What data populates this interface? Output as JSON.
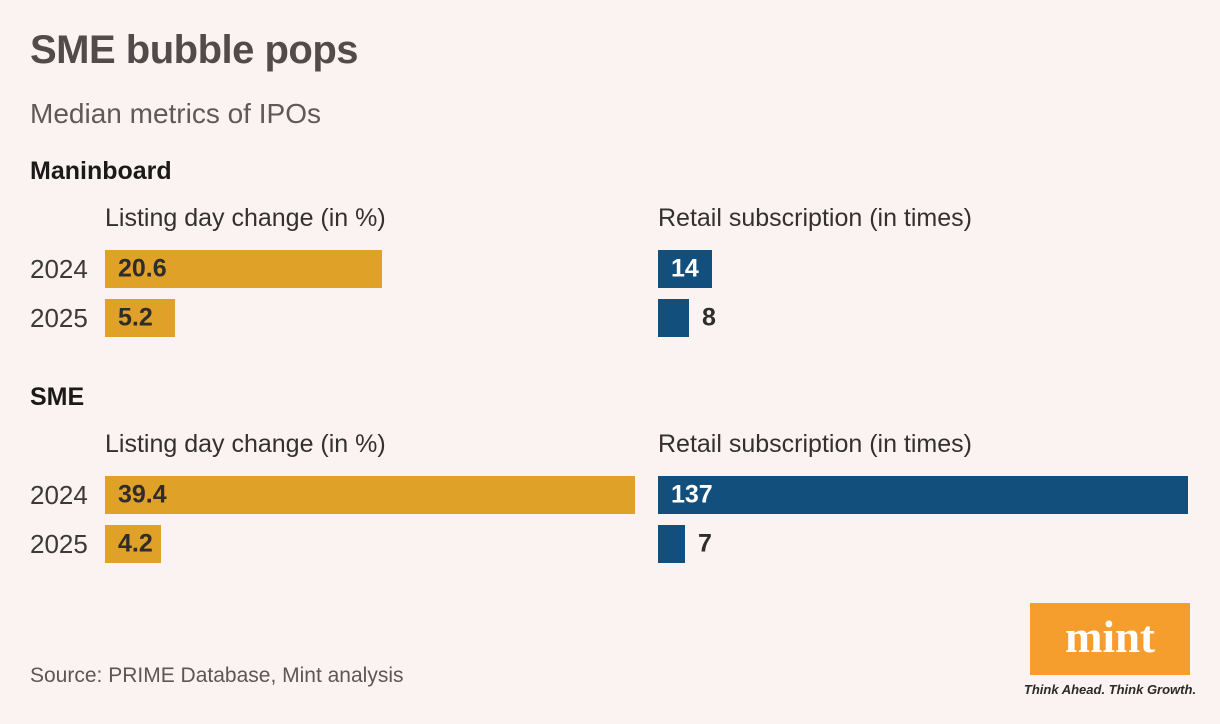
{
  "page": {
    "title": "SME bubble pops",
    "subtitle": "Median metrics of IPOs",
    "source": "Source: PRIME Database, Mint analysis"
  },
  "sections": [
    {
      "label": "Maninboard"
    },
    {
      "label": "SME"
    }
  ],
  "colors": {
    "background": "#fbf3f2",
    "gold_bar": "#dfa127",
    "blue_bar": "#124f7c",
    "title_gray": "#514b4b",
    "text_dark": "#2e2c2c",
    "logo_orange": "#f69e2d"
  },
  "logo": {
    "text": "mint",
    "tagline": "Think Ahead. Think Growth."
  },
  "chart_data": [
    {
      "type": "bar",
      "section": "Maninboard",
      "title": "Listing day change (in %)",
      "orientation": "horizontal",
      "categories": [
        "2024",
        "2025"
      ],
      "values": [
        20.6,
        5.2
      ],
      "xlim": [
        0,
        39.4
      ],
      "color": "#dfa127",
      "inside_label_color": "#2e2c2c",
      "label_position": [
        "inside",
        "inside"
      ],
      "grid": false,
      "legend": false
    },
    {
      "type": "bar",
      "section": "Maninboard",
      "title": "Retail subscription (in times)",
      "orientation": "horizontal",
      "categories": [
        "2024",
        "2025"
      ],
      "values": [
        14,
        8
      ],
      "xlim": [
        0,
        137
      ],
      "color": "#124f7c",
      "inside_label_color": "#ffffff",
      "label_position": [
        "inside",
        "outside"
      ],
      "grid": false,
      "legend": false
    },
    {
      "type": "bar",
      "section": "SME",
      "title": "Listing day change (in %)",
      "orientation": "horizontal",
      "categories": [
        "2024",
        "2025"
      ],
      "values": [
        39.4,
        4.2
      ],
      "xlim": [
        0,
        39.4
      ],
      "color": "#dfa127",
      "inside_label_color": "#2e2c2c",
      "label_position": [
        "inside",
        "inside"
      ],
      "grid": false,
      "legend": false
    },
    {
      "type": "bar",
      "section": "SME",
      "title": "Retail subscription (in times)",
      "orientation": "horizontal",
      "categories": [
        "2024",
        "2025"
      ],
      "values": [
        137,
        7
      ],
      "xlim": [
        0,
        137
      ],
      "color": "#124f7c",
      "inside_label_color": "#ffffff",
      "label_position": [
        "inside",
        "outside"
      ],
      "grid": false,
      "legend": false
    }
  ]
}
